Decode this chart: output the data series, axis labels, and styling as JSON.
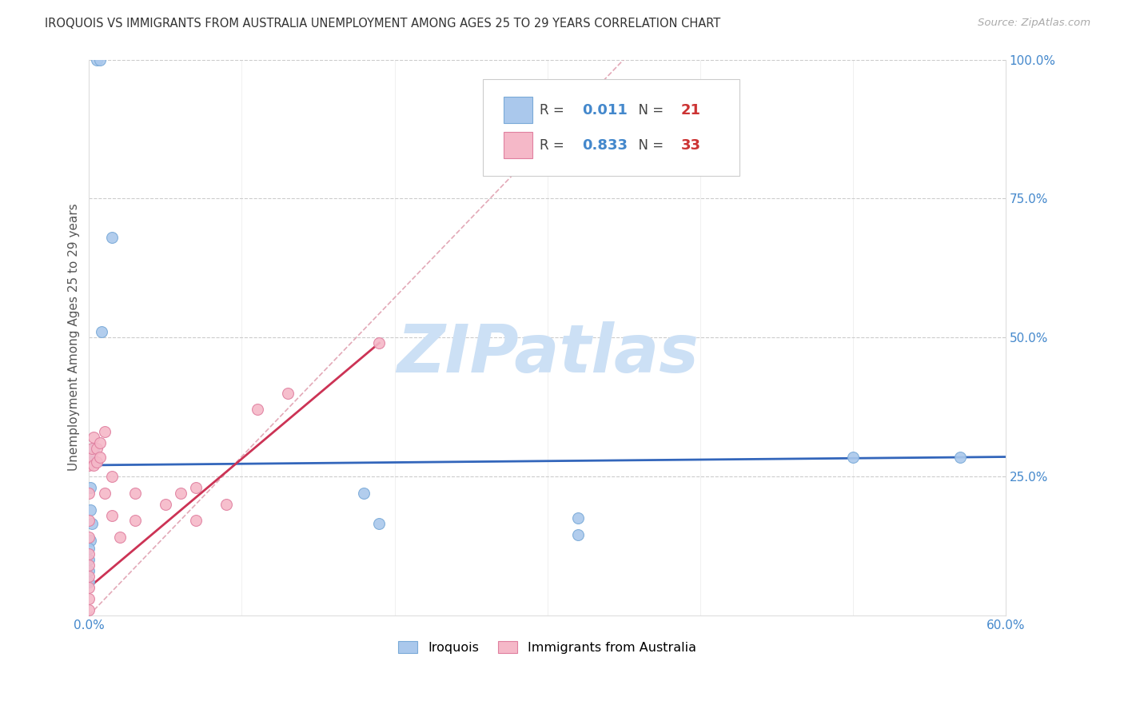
{
  "title": "IROQUOIS VS IMMIGRANTS FROM AUSTRALIA UNEMPLOYMENT AMONG AGES 25 TO 29 YEARS CORRELATION CHART",
  "source": "Source: ZipAtlas.com",
  "ylabel": "Unemployment Among Ages 25 to 29 years",
  "xlim": [
    0.0,
    0.6
  ],
  "ylim": [
    0.0,
    1.0
  ],
  "xticks": [
    0.0,
    0.1,
    0.2,
    0.3,
    0.4,
    0.5,
    0.6
  ],
  "xticklabels": [
    "0.0%",
    "",
    "",
    "",
    "",
    "",
    "60.0%"
  ],
  "yticks": [
    0.0,
    0.25,
    0.5,
    0.75,
    1.0
  ],
  "yticklabels": [
    "",
    "25.0%",
    "50.0%",
    "75.0%",
    "100.0%"
  ],
  "background_color": "#ffffff",
  "grid_color": "#cccccc",
  "watermark_text": "ZIPatlas",
  "watermark_color": "#cce0f5",
  "iroquois_color": "#aac8ec",
  "iroquois_edge_color": "#7aaad8",
  "australia_color": "#f5b8c8",
  "australia_edge_color": "#e080a0",
  "R_iroquois": "0.011",
  "N_iroquois": "21",
  "R_australia": "0.833",
  "N_australia": "33",
  "legend_color": "#4488cc",
  "legend_N_color": "#cc3333",
  "iroquois_x": [
    0.005,
    0.007,
    0.015,
    0.008,
    0.003,
    0.001,
    0.002,
    0.001,
    0.001,
    0.002,
    0.001,
    0.0,
    0.0,
    0.0,
    0.0,
    0.18,
    0.19,
    0.32,
    0.32,
    0.5,
    0.57
  ],
  "iroquois_y": [
    1.0,
    1.0,
    0.68,
    0.51,
    0.3,
    0.285,
    0.275,
    0.23,
    0.19,
    0.165,
    0.135,
    0.12,
    0.1,
    0.08,
    0.06,
    0.22,
    0.165,
    0.175,
    0.145,
    0.285,
    0.285
  ],
  "australia_x": [
    0.0,
    0.0,
    0.0,
    0.0,
    0.0,
    0.0,
    0.0,
    0.0,
    0.0,
    0.0,
    0.002,
    0.002,
    0.003,
    0.003,
    0.005,
    0.005,
    0.007,
    0.007,
    0.01,
    0.01,
    0.015,
    0.015,
    0.02,
    0.03,
    0.03,
    0.05,
    0.06,
    0.07,
    0.07,
    0.09,
    0.11,
    0.13,
    0.19
  ],
  "australia_y": [
    0.01,
    0.03,
    0.05,
    0.07,
    0.09,
    0.11,
    0.14,
    0.17,
    0.22,
    0.27,
    0.285,
    0.3,
    0.32,
    0.27,
    0.275,
    0.3,
    0.285,
    0.31,
    0.33,
    0.22,
    0.25,
    0.18,
    0.14,
    0.22,
    0.17,
    0.2,
    0.22,
    0.23,
    0.17,
    0.2,
    0.37,
    0.4,
    0.49
  ],
  "iroquois_trend_x": [
    0.0,
    0.6
  ],
  "iroquois_trend_y": [
    0.27,
    0.285
  ],
  "iroquois_trend_color": "#3366bb",
  "australia_trend_x": [
    0.0,
    0.19
  ],
  "australia_trend_y": [
    0.05,
    0.49
  ],
  "australia_trend_color": "#cc3355",
  "identity_line_x": [
    0.0,
    0.35
  ],
  "identity_line_y": [
    0.0,
    1.0
  ],
  "identity_line_color": "#e0a0b0"
}
